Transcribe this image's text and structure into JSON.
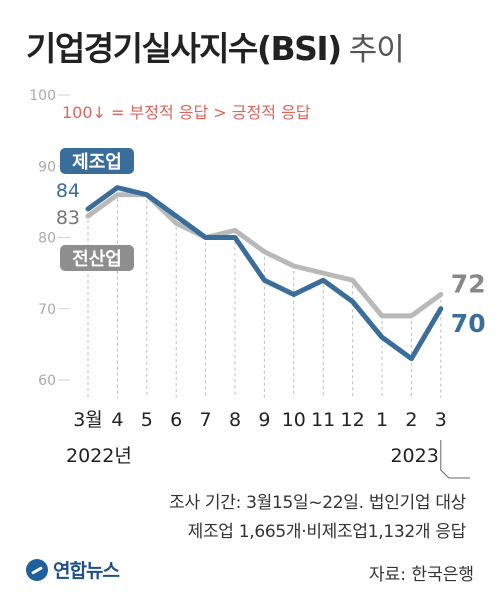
{
  "title": "기업경기실사지수(BSI)",
  "title_suffix": "추이",
  "annotation": "100↓ = 부정적 응답 > 긍정적 응답",
  "note_line1": "조사 기간: 3월15일~22일. 법인기업 대상",
  "note_line2": "제조업 1,665개·비제조업1,132개 응답",
  "source": "자료: 한국은행",
  "logo": "연합뉴스",
  "colors": {
    "manufacturing": "#3a6d9a",
    "all_industry": "#b9b9b9",
    "annotation": "#e0645a"
  },
  "chart_data": {
    "type": "line",
    "categories": [
      "3월",
      "4",
      "5",
      "6",
      "7",
      "8",
      "9",
      "10",
      "11",
      "12",
      "1",
      "2",
      "3"
    ],
    "year_labels": [
      "2022년",
      "2023"
    ],
    "ylim": [
      60,
      100
    ],
    "yticks": [
      60,
      70,
      80,
      90,
      100
    ],
    "series": [
      {
        "name": "전산업",
        "values": [
          83,
          86,
          86,
          82,
          80,
          81,
          78,
          76,
          75,
          74,
          69,
          69,
          72
        ],
        "start_label": "83",
        "end_label": "72"
      },
      {
        "name": "제조업",
        "values": [
          84,
          87,
          86,
          83,
          80,
          80,
          74,
          72,
          74,
          71,
          66,
          63,
          70
        ],
        "start_label": "84",
        "end_label": "70"
      }
    ]
  }
}
